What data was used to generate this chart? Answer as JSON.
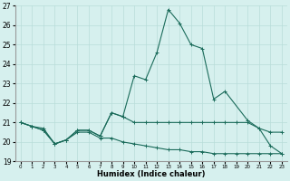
{
  "xlabel": "Humidex (Indice chaleur)",
  "x": [
    0,
    1,
    2,
    3,
    4,
    5,
    6,
    7,
    8,
    9,
    10,
    11,
    12,
    13,
    14,
    15,
    16,
    17,
    18,
    19,
    20,
    21,
    22,
    23
  ],
  "line1": [
    21.0,
    20.8,
    20.7,
    19.9,
    20.1,
    20.6,
    20.6,
    20.3,
    21.5,
    21.3,
    23.4,
    23.2,
    24.6,
    26.8,
    26.1,
    25.0,
    24.8,
    22.2,
    22.6,
    null,
    21.1,
    20.7,
    19.8,
    19.4
  ],
  "line2": [
    21.0,
    20.8,
    20.6,
    19.9,
    20.1,
    20.6,
    20.6,
    20.3,
    21.5,
    21.3,
    21.0,
    21.0,
    21.0,
    21.0,
    21.0,
    21.0,
    21.0,
    21.0,
    21.0,
    21.0,
    21.0,
    20.7,
    20.5,
    20.5
  ],
  "line3": [
    21.0,
    20.8,
    20.6,
    19.9,
    20.1,
    20.5,
    20.5,
    20.2,
    20.2,
    20.0,
    19.9,
    19.8,
    19.7,
    19.6,
    19.6,
    19.5,
    19.5,
    19.4,
    19.4,
    19.4,
    19.4,
    19.4,
    19.4,
    19.4
  ],
  "line_color": "#1a6b5a",
  "bg_color": "#d6f0ee",
  "grid_color": "#b8ddd9",
  "ylim": [
    19,
    27
  ],
  "xlim": [
    -0.5,
    23.5
  ],
  "yticks": [
    19,
    20,
    21,
    22,
    23,
    24,
    25,
    26,
    27
  ],
  "xticks": [
    0,
    1,
    2,
    3,
    4,
    5,
    6,
    7,
    8,
    9,
    10,
    11,
    12,
    13,
    14,
    15,
    16,
    17,
    18,
    19,
    20,
    21,
    22,
    23
  ]
}
